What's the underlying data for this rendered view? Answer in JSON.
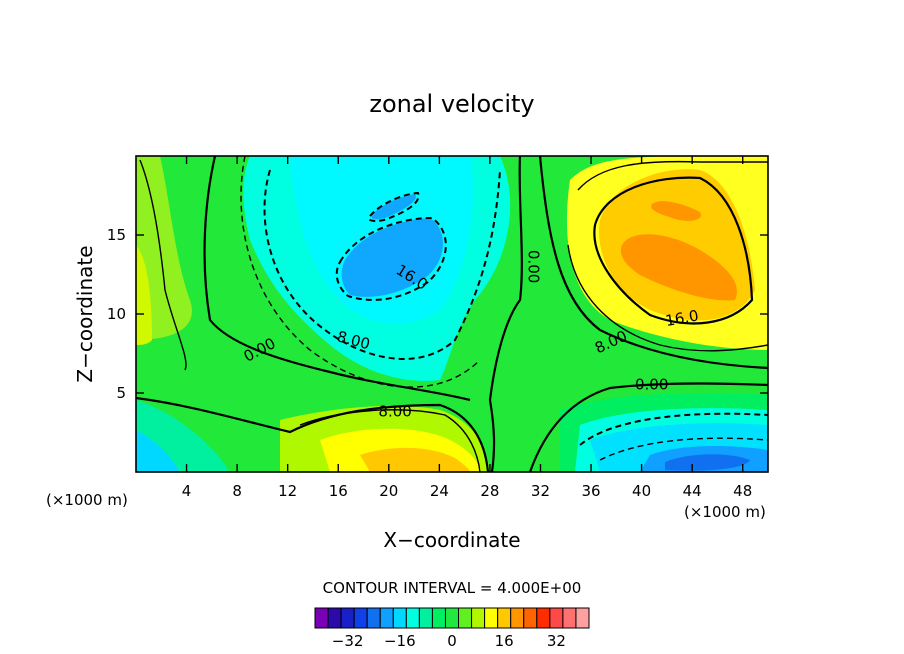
{
  "chart_data": {
    "type": "contour",
    "title": "zonal velocity",
    "xlabel": "X−coordinate",
    "ylabel": "Z−coordinate",
    "x_unit_left": "(×1000 m)",
    "x_unit_right": "(×1000 m)",
    "xlim": [
      0,
      50
    ],
    "ylim": [
      0,
      20
    ],
    "xticks": [
      4,
      8,
      12,
      16,
      20,
      24,
      28,
      32,
      36,
      40,
      44,
      48
    ],
    "yticks": [
      5,
      10,
      15
    ],
    "contour_labels": [
      {
        "text": "16.0",
        "x": 21.8,
        "y": 12.3,
        "angle": -32
      },
      {
        "text": "8.00",
        "x": 17.2,
        "y": 8.3,
        "angle": -15
      },
      {
        "text": "0.00",
        "x": 9.8,
        "y": 7.7,
        "angle": 28
      },
      {
        "text": "0.00",
        "x": 31.4,
        "y": 13.0,
        "angle": -90
      },
      {
        "text": "16.0",
        "x": 43.2,
        "y": 9.7,
        "angle": 10
      },
      {
        "text": "8.00",
        "x": 37.6,
        "y": 8.2,
        "angle": 25
      },
      {
        "text": "0.00",
        "x": 40.8,
        "y": 5.5,
        "angle": 0
      },
      {
        "text": "8.00",
        "x": 20.5,
        "y": 3.8,
        "angle": 0
      }
    ],
    "contour_interval_text": "CONTOUR INTERVAL = 4.000E+00",
    "colorbar": {
      "colors": [
        "#7a00b8",
        "#2a0aa8",
        "#1a20c8",
        "#1040e8",
        "#1070f0",
        "#10a0ff",
        "#00d8ff",
        "#00ffe0",
        "#00f0a0",
        "#00ee60",
        "#20e840",
        "#60f020",
        "#b0f800",
        "#ffff00",
        "#ffc800",
        "#ff9600",
        "#ff6400",
        "#ff2c00",
        "#ff4848",
        "#ff7070",
        "#ffa0a0"
      ],
      "tick_labels": [
        "−32",
        "−16",
        "0",
        "16",
        "32"
      ],
      "tick_values": [
        -32,
        -16,
        0,
        16,
        32
      ],
      "range": [
        -42,
        42
      ]
    }
  }
}
